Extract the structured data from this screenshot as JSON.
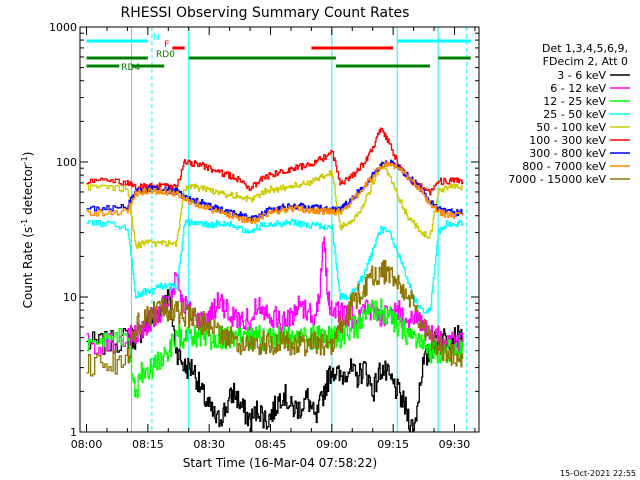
{
  "chart_data": {
    "type": "line",
    "title": "RHESSI Observing Summary Count Rates",
    "xlabel": "Start Time (16-Mar-04 07:58:22)",
    "ylabel_main": "Count Rate (s",
    "ylabel_sup1": "-1",
    "ylabel_mid": " detector",
    "ylabel_sup2": "-1",
    "ylabel_end": ")",
    "yscale": "log",
    "xlim": [
      -1.6,
      96
    ],
    "ylim": [
      1,
      1000
    ],
    "x_ticks": [
      {
        "value": 0,
        "label": "08:00"
      },
      {
        "value": 15,
        "label": "08:15"
      },
      {
        "value": 30,
        "label": "08:30"
      },
      {
        "value": 45,
        "label": "08:45"
      },
      {
        "value": 60,
        "label": "09:00"
      },
      {
        "value": 75,
        "label": "09:15"
      },
      {
        "value": 90,
        "label": "09:30"
      }
    ],
    "y_ticks": [
      {
        "value": 1,
        "label": "1"
      },
      {
        "value": 10,
        "label": "10"
      },
      {
        "value": 100,
        "label": "100"
      },
      {
        "value": 1000,
        "label": "1000"
      }
    ],
    "legend_header": [
      "Det 1,3,4,5,6,9,",
      "FDecim 2, Att 0"
    ],
    "series": [
      {
        "name": "3 - 6 keV",
        "color": "#000000",
        "x": [
          0,
          5,
          10,
          12,
          14,
          16,
          18,
          20,
          22,
          24,
          26,
          28,
          30,
          32,
          34,
          36,
          38,
          40,
          42,
          44,
          46,
          48,
          50,
          52,
          54,
          56,
          58,
          60,
          62,
          64,
          66,
          68,
          70,
          72,
          74,
          76,
          78,
          80,
          82,
          84,
          86,
          88,
          90,
          92
        ],
        "y": [
          4.5,
          4.5,
          5,
          5,
          6,
          7,
          8,
          10,
          4,
          3,
          3,
          2,
          1.5,
          1.2,
          1.5,
          2,
          1.5,
          1.2,
          1.5,
          1.2,
          1.5,
          2,
          1.5,
          1.5,
          1.8,
          1.2,
          2,
          3,
          2.5,
          3,
          2.5,
          3,
          2,
          3,
          2.5,
          2,
          1.5,
          1,
          3,
          4,
          5,
          5,
          5,
          5
        ]
      },
      {
        "name": "6 - 12 keV",
        "color": "#ff00ff",
        "x": [
          0,
          5,
          10,
          12,
          14,
          16,
          18,
          20,
          22,
          24,
          26,
          28,
          30,
          32,
          34,
          36,
          38,
          40,
          42,
          44,
          46,
          48,
          50,
          52,
          54,
          56,
          57,
          58,
          59,
          60,
          62,
          64,
          66,
          68,
          70,
          72,
          74,
          76,
          78,
          80,
          82,
          84,
          86,
          88,
          90,
          92
        ],
        "y": [
          4.5,
          4.5,
          5,
          5,
          6,
          7,
          8,
          9,
          14,
          9,
          7,
          6.5,
          7,
          9,
          8,
          7,
          6.5,
          7,
          9,
          8,
          7,
          6.5,
          7,
          9,
          8,
          7,
          11,
          30,
          10,
          8,
          7.5,
          7,
          7.5,
          8,
          8,
          7.5,
          7,
          8,
          7,
          7,
          6,
          5,
          5,
          4.5,
          4.5,
          4.5
        ]
      },
      {
        "name": "12 - 25 keV",
        "color": "#00ff00",
        "x": [
          0,
          5,
          10,
          12,
          14,
          16,
          18,
          20,
          22,
          24,
          26,
          28,
          30,
          32,
          34,
          36,
          38,
          40,
          42,
          44,
          46,
          48,
          50,
          52,
          54,
          56,
          58,
          60,
          62,
          64,
          66,
          68,
          70,
          72,
          74,
          76,
          78,
          80,
          82,
          84,
          86,
          88,
          90,
          92
        ],
        "y": [
          4.5,
          4.5,
          5,
          2,
          3,
          3,
          3.5,
          4,
          5,
          5,
          5,
          5,
          5,
          5,
          5,
          5,
          5,
          5,
          5,
          5,
          5,
          5,
          5,
          5,
          5,
          5,
          5,
          5,
          5,
          5.5,
          6,
          7,
          8,
          8,
          7,
          6,
          5.5,
          5,
          4.5,
          4,
          4,
          4,
          4,
          4
        ]
      },
      {
        "name": "25 - 50 keV",
        "color": "#00ffff",
        "x": [
          0,
          5,
          10,
          12,
          14,
          16,
          18,
          20,
          22,
          24,
          26,
          28,
          30,
          32,
          34,
          36,
          38,
          40,
          42,
          44,
          46,
          48,
          50,
          52,
          54,
          56,
          58,
          60,
          62,
          64,
          66,
          68,
          70,
          72,
          74,
          76,
          78,
          80,
          82,
          84,
          86,
          88,
          90,
          92
        ],
        "y": [
          35,
          35,
          33,
          10,
          11,
          11,
          12,
          12,
          12,
          36,
          36,
          35,
          34,
          35,
          35,
          34,
          32,
          31,
          33,
          35,
          35,
          35,
          36,
          35,
          34,
          34,
          33,
          33,
          10,
          10,
          12,
          15,
          22,
          32,
          30,
          22,
          15,
          10,
          8,
          8,
          30,
          35,
          35,
          35
        ]
      },
      {
        "name": "50 - 100 keV",
        "color": "#cccc00",
        "x": [
          0,
          5,
          10,
          12,
          14,
          16,
          18,
          20,
          22,
          24,
          26,
          28,
          30,
          32,
          34,
          36,
          38,
          40,
          42,
          44,
          46,
          48,
          50,
          52,
          54,
          56,
          58,
          60,
          62,
          64,
          66,
          68,
          70,
          72,
          74,
          76,
          78,
          80,
          82,
          84,
          86,
          88,
          90,
          92
        ],
        "y": [
          65,
          65,
          63,
          24,
          25,
          25,
          25,
          25,
          25,
          65,
          65,
          64,
          62,
          60,
          58,
          57,
          55,
          52,
          57,
          62,
          63,
          64,
          66,
          68,
          70,
          73,
          78,
          85,
          33,
          35,
          40,
          50,
          70,
          95,
          80,
          58,
          42,
          35,
          30,
          28,
          60,
          65,
          65,
          65
        ]
      },
      {
        "name": "100 - 300 keV",
        "color": "#ff0000",
        "x": [
          0,
          5,
          10,
          12,
          14,
          16,
          18,
          20,
          22,
          24,
          26,
          28,
          30,
          32,
          34,
          36,
          38,
          40,
          42,
          44,
          46,
          48,
          50,
          52,
          54,
          56,
          58,
          60,
          62,
          64,
          66,
          68,
          70,
          72,
          74,
          76,
          78,
          80,
          82,
          84,
          86,
          88,
          90,
          92
        ],
        "y": [
          72,
          72,
          70,
          65,
          66,
          66,
          66,
          65,
          65,
          100,
          98,
          95,
          90,
          85,
          80,
          78,
          72,
          62,
          72,
          78,
          82,
          85,
          88,
          92,
          96,
          100,
          108,
          120,
          70,
          75,
          85,
          100,
          130,
          175,
          140,
          100,
          80,
          70,
          65,
          60,
          72,
          72,
          72,
          72
        ]
      },
      {
        "name": "300 - 800 keV",
        "color": "#0000ff",
        "x": [
          0,
          5,
          10,
          12,
          14,
          16,
          18,
          20,
          22,
          24,
          26,
          28,
          30,
          32,
          34,
          36,
          38,
          40,
          42,
          44,
          46,
          48,
          50,
          52,
          54,
          56,
          58,
          60,
          62,
          64,
          66,
          68,
          70,
          72,
          74,
          76,
          78,
          80,
          82,
          84,
          86,
          88,
          90,
          92
        ],
        "y": [
          45,
          45,
          47,
          60,
          62,
          63,
          63,
          62,
          60,
          55,
          52,
          50,
          47,
          45,
          43,
          42,
          40,
          38,
          40,
          43,
          45,
          46,
          47,
          47,
          46,
          46,
          45,
          45,
          45,
          50,
          58,
          68,
          80,
          95,
          100,
          92,
          82,
          72,
          62,
          50,
          45,
          43,
          42,
          42
        ]
      },
      {
        "name": "800 - 7000 keV",
        "color": "#ff8c00",
        "x": [
          0,
          5,
          10,
          12,
          14,
          16,
          18,
          20,
          22,
          24,
          26,
          28,
          30,
          32,
          34,
          36,
          38,
          40,
          42,
          44,
          46,
          48,
          50,
          52,
          54,
          56,
          58,
          60,
          62,
          64,
          66,
          68,
          70,
          72,
          74,
          76,
          78,
          80,
          82,
          84,
          86,
          88,
          90,
          92
        ],
        "y": [
          42,
          42,
          44,
          58,
          60,
          61,
          61,
          60,
          58,
          53,
          50,
          48,
          45,
          43,
          41,
          40,
          38,
          36,
          38,
          41,
          43,
          44,
          45,
          45,
          44,
          44,
          43,
          43,
          43,
          48,
          56,
          66,
          78,
          93,
          98,
          90,
          80,
          70,
          60,
          48,
          43,
          41,
          40,
          40
        ]
      },
      {
        "name": "7000 - 15000 keV",
        "color": "#8b7500",
        "x": [
          0,
          5,
          10,
          12,
          14,
          16,
          18,
          20,
          22,
          24,
          26,
          28,
          30,
          32,
          34,
          36,
          38,
          40,
          42,
          44,
          46,
          48,
          50,
          52,
          54,
          56,
          58,
          60,
          62,
          64,
          66,
          68,
          70,
          72,
          74,
          76,
          78,
          80,
          82,
          84,
          86,
          88,
          90,
          92
        ],
        "y": [
          3.2,
          3.2,
          3.5,
          6,
          7,
          7.5,
          8,
          8,
          7.8,
          7.5,
          7,
          6.5,
          6,
          5.5,
          5,
          5,
          4.5,
          4.5,
          4.5,
          4.5,
          4.5,
          4.5,
          4.5,
          4.5,
          4.5,
          4.5,
          4.5,
          4.5,
          6,
          8,
          10,
          12,
          14,
          15.5,
          15,
          13,
          11,
          8.5,
          6.5,
          5,
          4.2,
          4,
          3.7,
          3.5
        ]
      }
    ],
    "flags": [
      {
        "name": "N",
        "color": "#00ffff",
        "row": 0,
        "segments": [
          [
            0,
            15
          ],
          [
            76,
            94
          ]
        ]
      },
      {
        "name": "F",
        "color": "#ff0000",
        "row": 1,
        "segments": [
          [
            21,
            24
          ],
          [
            55,
            75
          ]
        ]
      },
      {
        "name": "RD0",
        "color": "#008000",
        "row": 2,
        "segments": [
          [
            0,
            15
          ],
          [
            25,
            61
          ],
          [
            86,
            94
          ]
        ]
      },
      {
        "name": "RD4",
        "color": "#008000",
        "row": 3,
        "segments": [
          [
            0,
            8
          ],
          [
            11,
            19
          ],
          [
            61,
            84
          ]
        ]
      }
    ],
    "saa_lines": {
      "color": "#00ffff",
      "solid": [
        11,
        25,
        60,
        76,
        86
      ],
      "dashed": [
        16,
        93
      ]
    },
    "footer_date": "15-Oct-2021 22:55"
  }
}
